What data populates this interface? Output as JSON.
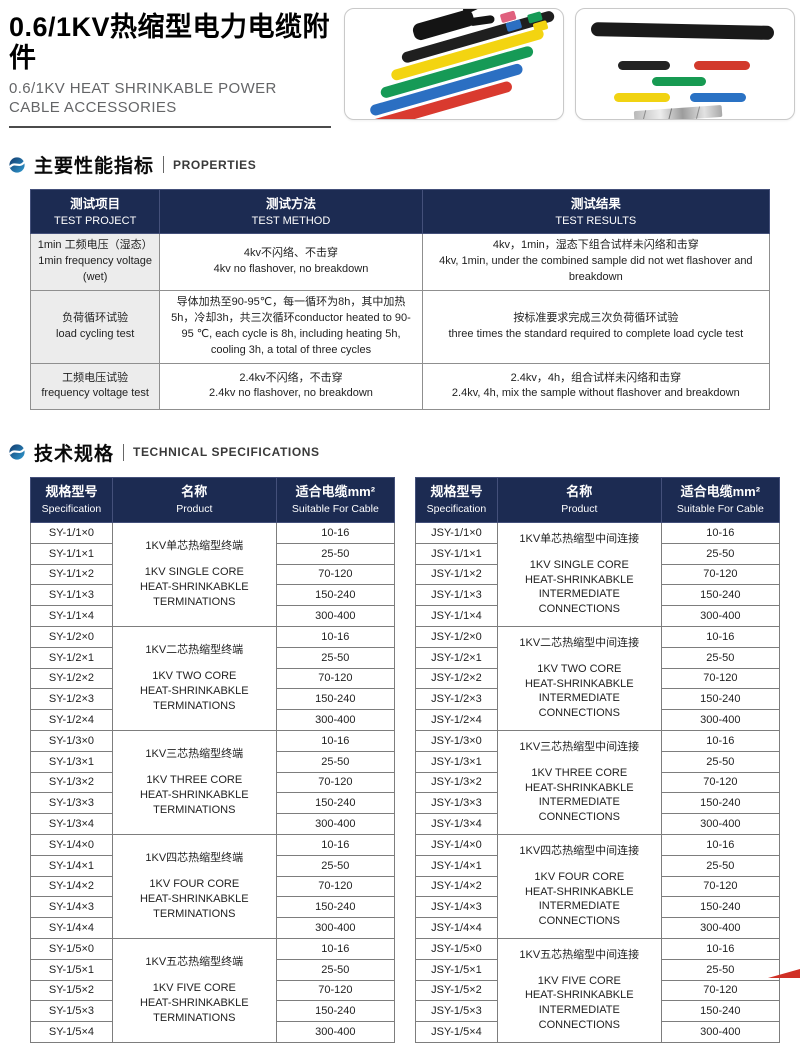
{
  "header": {
    "title_zh": "0.6/1KV热缩型电力电缆附件",
    "title_en_line1": "0.6/1KV HEAT SHRINKABLE POWER",
    "title_en_line2": "CABLE ACCESSORIES"
  },
  "sections": {
    "properties": {
      "zh": "主要性能指标",
      "en": "PROPERTIES"
    },
    "specifications": {
      "zh": "技术规格",
      "en": "TECHNICAL SPECIFICATIONS"
    }
  },
  "properties_table": {
    "headers": [
      {
        "zh": "测试项目",
        "en": "TEST PROJECT"
      },
      {
        "zh": "测试方法",
        "en": "TEST METHOD"
      },
      {
        "zh": "测试结果",
        "en": "TEST RESULTS"
      }
    ],
    "rows": [
      {
        "project_zh": "1min 工频电压（湿态）",
        "project_en": "1min frequency voltage (wet)",
        "method_zh": "4kv不闪络、不击穿",
        "method_en": "4kv no flashover, no breakdown",
        "result_zh": "4kv，1min，湿态下组合试样未闪络和击穿",
        "result_en": "4kv, 1min, under the combined sample did not wet flashover and breakdown"
      },
      {
        "project_zh": "负荷循环试验",
        "project_en": "load cycling test",
        "method_zh": "导体加热至90-95℃，每一循环为8h，其中加热5h，冷却3h，共三次循环",
        "method_en": "conductor heated to 90-95 ℃, each cycle is 8h, including heating 5h, cooling 3h, a total of three cycles",
        "result_zh": "按标准要求完成三次负荷循环试验",
        "result_en": "three times the standard required to complete load cycle test"
      },
      {
        "project_zh": "工频电压试验",
        "project_en": "frequency voltage test",
        "method_zh": "2.4kv不闪络，不击穿",
        "method_en": "2.4kv no flashover, no breakdown",
        "result_zh": "2.4kv，4h，组合试样未闪络和击穿",
        "result_en": "2.4kv, 4h, mix the sample without flashover and breakdown"
      }
    ]
  },
  "spec_headers": {
    "col1_zh": "规格型号",
    "col1_en": "Specification",
    "col2_zh": "名称",
    "col2_en": "Product",
    "col3_zh": "适合电缆mm²",
    "col3_en": "Suitable For Cable"
  },
  "spec_tables": [
    {
      "groups": [
        {
          "models": [
            "SY-1/1×0",
            "SY-1/1×1",
            "SY-1/1×2",
            "SY-1/1×3",
            "SY-1/1×4"
          ],
          "product_zh": "1KV单芯热缩型终端",
          "product_en_lines": [
            "1KV SINGLE CORE",
            "HEAT-SHRINKABKLE",
            "TERMINATIONS"
          ],
          "cables": [
            "10-16",
            "25-50",
            "70-120",
            "150-240",
            "300-400"
          ]
        },
        {
          "models": [
            "SY-1/2×0",
            "SY-1/2×1",
            "SY-1/2×2",
            "SY-1/2×3",
            "SY-1/2×4"
          ],
          "product_zh": "1KV二芯热缩型终端",
          "product_en_lines": [
            "1KV TWO CORE",
            "HEAT-SHRINKABKLE",
            "TERMINATIONS"
          ],
          "cables": [
            "10-16",
            "25-50",
            "70-120",
            "150-240",
            "300-400"
          ]
        },
        {
          "models": [
            "SY-1/3×0",
            "SY-1/3×1",
            "SY-1/3×2",
            "SY-1/3×3",
            "SY-1/3×4"
          ],
          "product_zh": "1KV三芯热缩型终端",
          "product_en_lines": [
            "1KV THREE CORE",
            "HEAT-SHRINKABKLE",
            "TERMINATIONS"
          ],
          "cables": [
            "10-16",
            "25-50",
            "70-120",
            "150-240",
            "300-400"
          ]
        },
        {
          "models": [
            "SY-1/4×0",
            "SY-1/4×1",
            "SY-1/4×2",
            "SY-1/4×3",
            "SY-1/4×4"
          ],
          "product_zh": "1KV四芯热缩型终端",
          "product_en_lines": [
            "1KV FOUR CORE",
            "HEAT-SHRINKABKLE",
            "TERMINATIONS"
          ],
          "cables": [
            "10-16",
            "25-50",
            "70-120",
            "150-240",
            "300-400"
          ]
        },
        {
          "models": [
            "SY-1/5×0",
            "SY-1/5×1",
            "SY-1/5×2",
            "SY-1/5×3",
            "SY-1/5×4"
          ],
          "product_zh": "1KV五芯热缩型终端",
          "product_en_lines": [
            "1KV FIVE CORE",
            "HEAT-SHRINKABKLE",
            "TERMINATIONS"
          ],
          "cables": [
            "10-16",
            "25-50",
            "70-120",
            "150-240",
            "300-400"
          ]
        }
      ]
    },
    {
      "groups": [
        {
          "models": [
            "JSY-1/1×0",
            "JSY-1/1×1",
            "JSY-1/1×2",
            "JSY-1/1×3",
            "JSY-1/1×4"
          ],
          "product_zh": "1KV单芯热缩型中间连接",
          "product_en_lines": [
            "1KV SINGLE CORE",
            "HEAT-SHRINKABKLE",
            "INTERMEDIATE CONNECTIONS"
          ],
          "cables": [
            "10-16",
            "25-50",
            "70-120",
            "150-240",
            "300-400"
          ]
        },
        {
          "models": [
            "JSY-1/2×0",
            "JSY-1/2×1",
            "JSY-1/2×2",
            "JSY-1/2×3",
            "JSY-1/2×4"
          ],
          "product_zh": "1KV二芯热缩型中间连接",
          "product_en_lines": [
            "1KV TWO CORE",
            "HEAT-SHRINKABKLE",
            "INTERMEDIATE CONNECTIONS"
          ],
          "cables": [
            "10-16",
            "25-50",
            "70-120",
            "150-240",
            "300-400"
          ]
        },
        {
          "models": [
            "JSY-1/3×0",
            "JSY-1/3×1",
            "JSY-1/3×2",
            "JSY-1/3×3",
            "JSY-1/3×4"
          ],
          "product_zh": "1KV三芯热缩型中间连接",
          "product_en_lines": [
            "1KV THREE CORE",
            "HEAT-SHRINKABKLE",
            "INTERMEDIATE CONNECTIONS"
          ],
          "cables": [
            "10-16",
            "25-50",
            "70-120",
            "150-240",
            "300-400"
          ]
        },
        {
          "models": [
            "JSY-1/4×0",
            "JSY-1/4×1",
            "JSY-1/4×2",
            "JSY-1/4×3",
            "JSY-1/4×4"
          ],
          "product_zh": "1KV四芯热缩型中间连接",
          "product_en_lines": [
            "1KV FOUR CORE",
            "HEAT-SHRINKABKLE",
            "INTERMEDIATE CONNECTIONS"
          ],
          "cables": [
            "10-16",
            "25-50",
            "70-120",
            "150-240",
            "300-400"
          ]
        },
        {
          "models": [
            "JSY-1/5×0",
            "JSY-1/5×1",
            "JSY-1/5×2",
            "JSY-1/5×3",
            "JSY-1/5×4"
          ],
          "product_zh": "1KV五芯热缩型中间连接",
          "product_en_lines": [
            "1KV FIVE CORE",
            "HEAT-SHRINKABKLE",
            "INTERMEDIATE CONNECTIONS"
          ],
          "cables": [
            "10-16",
            "25-50",
            "70-120",
            "150-240",
            "300-400"
          ]
        }
      ]
    }
  ],
  "colors": {
    "table_header_navy": "#1c2b52",
    "accent_blue": "#2f9ad0",
    "corner_red": "#d03026"
  }
}
